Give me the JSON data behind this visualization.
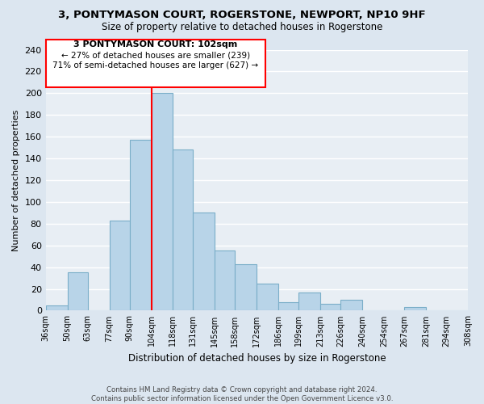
{
  "title": "3, PONTYMASON COURT, ROGERSTONE, NEWPORT, NP10 9HF",
  "subtitle": "Size of property relative to detached houses in Rogerstone",
  "xlabel": "Distribution of detached houses by size in Rogerstone",
  "ylabel": "Number of detached properties",
  "bar_color": "#b8d4e8",
  "bar_edge_color": "#7aaec8",
  "background_color": "#e8eef4",
  "grid_color": "white",
  "vline_x": 104,
  "vline_color": "red",
  "bin_edges": [
    36,
    50,
    63,
    77,
    90,
    104,
    118,
    131,
    145,
    158,
    172,
    186,
    199,
    213,
    226,
    240,
    254,
    267,
    281,
    294,
    308
  ],
  "bin_labels": [
    "36sqm",
    "50sqm",
    "63sqm",
    "77sqm",
    "90sqm",
    "104sqm",
    "118sqm",
    "131sqm",
    "145sqm",
    "158sqm",
    "172sqm",
    "186sqm",
    "199sqm",
    "213sqm",
    "226sqm",
    "240sqm",
    "254sqm",
    "267sqm",
    "281sqm",
    "294sqm",
    "308sqm"
  ],
  "counts": [
    5,
    35,
    0,
    83,
    157,
    200,
    148,
    90,
    55,
    43,
    25,
    8,
    17,
    6,
    10,
    0,
    0,
    3,
    0,
    0
  ],
  "ylim": [
    0,
    240
  ],
  "yticks": [
    0,
    20,
    40,
    60,
    80,
    100,
    120,
    140,
    160,
    180,
    200,
    220,
    240
  ],
  "annotation_title": "3 PONTYMASON COURT: 102sqm",
  "annotation_line1": "← 27% of detached houses are smaller (239)",
  "annotation_line2": "71% of semi-detached houses are larger (627) →",
  "annotation_box_color": "white",
  "annotation_box_edge": "red",
  "footer1": "Contains HM Land Registry data © Crown copyright and database right 2024.",
  "footer2": "Contains public sector information licensed under the Open Government Licence v3.0."
}
